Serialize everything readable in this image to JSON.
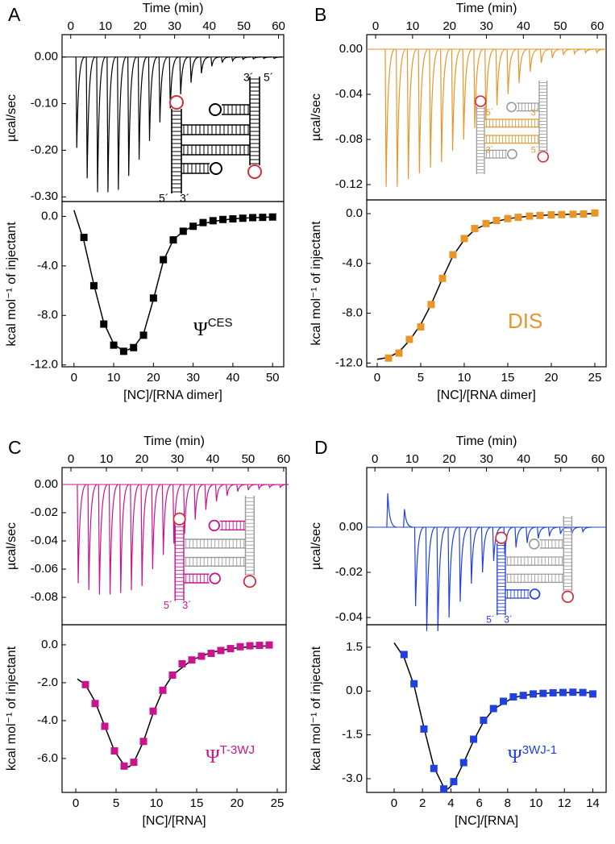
{
  "chart_data": [
    {
      "type": "trace",
      "panel_label": "A",
      "xlabel": "Time (min)",
      "ylabel": "µcal/sec",
      "color": "#000000",
      "xlim": [
        -2.5,
        61.5
      ],
      "xticks": [
        0,
        10,
        20,
        30,
        40,
        50,
        60
      ],
      "ylim": [
        -0.31,
        0.048
      ],
      "yticks": [
        {
          "value": 0,
          "label": "0.00"
        },
        {
          "value": -0.1,
          "label": "-0.10"
        },
        {
          "value": -0.2,
          "label": "-0.20"
        },
        {
          "value": -0.3,
          "label": "-0.30"
        }
      ],
      "x": [
        1.5,
        4.5,
        7.5,
        10.5,
        13.5,
        16.5,
        19.5,
        22.5,
        25.5,
        28.5,
        31.5,
        34.5,
        37.5,
        40.5,
        43.5,
        46.5,
        49.5,
        52.5,
        55.5,
        58.5
      ],
      "values": [
        -0.195,
        -0.26,
        -0.29,
        -0.29,
        -0.285,
        -0.255,
        -0.22,
        -0.18,
        -0.14,
        -0.11,
        -0.08,
        -0.055,
        -0.035,
        -0.02,
        -0.012,
        -0.008,
        -0.005,
        -0.004,
        -0.003,
        -0.003
      ],
      "diagram_labels": [
        "3´",
        "5´",
        "5´",
        "3´"
      ]
    },
    {
      "type": "scatter",
      "xlabel": "[NC]/[RNA dimer]",
      "ylabel": "kcal mol⁻¹ of injectant",
      "color": "#000000",
      "fit_color": "#000000",
      "xlim": [
        -3,
        52.8
      ],
      "xticks": [
        0,
        10,
        20,
        30,
        40,
        50
      ],
      "ylim": [
        -12.15,
        1.2
      ],
      "yticks": [
        {
          "value": 0,
          "label": "0.0"
        },
        {
          "value": -4,
          "label": "-4.0"
        },
        {
          "value": -8,
          "label": "-8.0"
        },
        {
          "value": -12,
          "label": "-12.0"
        }
      ],
      "x": [
        2.5,
        5,
        7.5,
        10,
        12.5,
        15,
        17.5,
        20,
        22.5,
        25,
        27.5,
        30,
        32.5,
        35,
        37.5,
        40,
        42.5,
        45,
        47.5,
        50
      ],
      "values": [
        -1.7,
        -5.6,
        -8.7,
        -10.4,
        -10.9,
        -10.6,
        -9.6,
        -6.6,
        -3.5,
        -1.9,
        -1.2,
        -0.8,
        -0.5,
        -0.35,
        -0.25,
        -0.2,
        -0.15,
        -0.1,
        -0.08,
        -0.05
      ],
      "fit_x": [
        0,
        2.5,
        5,
        7.5,
        10,
        12.5,
        15,
        17.5,
        20,
        22.5,
        25,
        27.5,
        30,
        35,
        40,
        45,
        50
      ],
      "fit_values": [
        0.5,
        -2,
        -5.5,
        -8.6,
        -10.3,
        -10.9,
        -10.6,
        -9.5,
        -6.7,
        -3.6,
        -1.9,
        -1.2,
        -0.8,
        -0.4,
        -0.2,
        -0.1,
        -0.05
      ],
      "annotation": {
        "text": "Ψ",
        "superscript": "CES",
        "color": "#000000"
      }
    },
    {
      "type": "trace",
      "panel_label": "B",
      "xlabel": "Time (min)",
      "ylabel": "µcal/sec",
      "color": "#e8962a",
      "xlim": [
        -2.4,
        62.4
      ],
      "xticks": [
        0,
        10,
        20,
        30,
        40,
        50,
        60
      ],
      "ylim": [
        -0.1336,
        0.0129
      ],
      "yticks": [
        {
          "value": 0,
          "label": "0.00"
        },
        {
          "value": -0.04,
          "label": "-0.04"
        },
        {
          "value": -0.08,
          "label": "-0.08"
        },
        {
          "value": -0.12,
          "label": "-0.12"
        }
      ],
      "x": [
        2.6,
        5.6,
        8.6,
        11.6,
        14.6,
        17.6,
        20.6,
        23.6,
        26.6,
        29.6,
        32.6,
        35.6,
        38.6,
        41.6,
        44.6,
        47.6,
        50.6,
        53.6,
        56.6,
        59.6
      ],
      "values": [
        -0.122,
        -0.122,
        -0.115,
        -0.11,
        -0.105,
        -0.1,
        -0.09,
        -0.08,
        -0.07,
        -0.063,
        -0.05,
        -0.04,
        -0.03,
        -0.02,
        -0.012,
        -0.008,
        -0.005,
        -0.004,
        -0.003,
        -0.003
      ],
      "diagram_labels": [
        "5´",
        "3´",
        "3´",
        "5´"
      ]
    },
    {
      "type": "scatter",
      "xlabel": "[NC]/[RNA dimer]",
      "ylabel": "kcal mol⁻¹ of injectant",
      "color": "#e8962a",
      "fit_color": "#000000",
      "xlim": [
        -1.2,
        26.3
      ],
      "xticks": [
        0,
        5,
        10,
        15,
        20,
        25
      ],
      "ylim": [
        -12.3,
        1.1
      ],
      "yticks": [
        {
          "value": 0,
          "label": "0.0"
        },
        {
          "value": -4,
          "label": "-4.0"
        },
        {
          "value": -8,
          "label": "-8.0"
        },
        {
          "value": -12,
          "label": "-12.0"
        }
      ],
      "x": [
        1.3,
        2.5,
        3.7,
        5,
        6.2,
        7.5,
        8.7,
        10,
        11.2,
        12.5,
        13.7,
        15,
        16.2,
        17.5,
        18.7,
        20,
        21.2,
        22.5,
        23.7,
        25
      ],
      "values": [
        -11.6,
        -11.2,
        -10.1,
        -9.1,
        -7.3,
        -5.2,
        -3.3,
        -2.0,
        -1.2,
        -0.8,
        -0.55,
        -0.4,
        -0.3,
        -0.2,
        -0.15,
        -0.1,
        -0.08,
        -0.05,
        -0.03,
        0.05
      ],
      "fit_x": [
        0,
        1.3,
        2.5,
        3.7,
        5,
        6.2,
        7.5,
        8.7,
        10,
        11.2,
        12.5,
        15,
        17.5,
        20,
        22.5,
        25
      ],
      "fit_values": [
        -11.7,
        -11.55,
        -11.1,
        -10.2,
        -8.9,
        -7.3,
        -5.2,
        -3.4,
        -2.1,
        -1.3,
        -0.85,
        -0.4,
        -0.2,
        -0.1,
        -0.05,
        0
      ],
      "annotation": {
        "text": "DIS",
        "color": "#e8962a"
      }
    },
    {
      "type": "trace",
      "panel_label": "C",
      "xlabel": "Time (min)",
      "ylabel": "µcal/sec",
      "color": "#c8158f",
      "xlim": [
        -2.5,
        60.7
      ],
      "xticks": [
        0,
        10,
        20,
        30,
        40,
        50,
        60
      ],
      "ylim": [
        -0.0994,
        0.012
      ],
      "yticks": [
        {
          "value": 0,
          "label": "0.00"
        },
        {
          "value": -0.02,
          "label": "-0.02"
        },
        {
          "value": -0.04,
          "label": "-0.04"
        },
        {
          "value": -0.06,
          "label": "-0.06"
        },
        {
          "value": -0.08,
          "label": "-0.08"
        }
      ],
      "x": [
        1.8,
        4.8,
        7.8,
        10.8,
        13.8,
        16.8,
        19.8,
        22.8,
        25.8,
        28.8,
        31.8,
        34.8,
        37.8,
        40.8,
        43.8,
        46.8,
        49.8,
        52.8,
        55.8,
        58.8
      ],
      "values": [
        -0.07,
        -0.075,
        -0.078,
        -0.078,
        -0.077,
        -0.075,
        -0.072,
        -0.06,
        -0.05,
        -0.042,
        -0.035,
        -0.025,
        -0.018,
        -0.012,
        -0.008,
        -0.005,
        -0.004,
        -0.003,
        -0.002,
        -0.002
      ],
      "diagram_labels": [
        "5´",
        "3´"
      ]
    },
    {
      "type": "scatter",
      "xlabel": "[NC]/[RNA]",
      "ylabel": "kcal mol⁻¹ of injectant",
      "color": "#c8158f",
      "fit_color": "#000000",
      "xlim": [
        -1.7,
        26.1
      ],
      "xticks": [
        0,
        5,
        10,
        15,
        20,
        25
      ],
      "ylim": [
        -7.79,
        1.06
      ],
      "yticks": [
        {
          "value": 0,
          "label": "0.0"
        },
        {
          "value": -2,
          "label": "-2.0"
        },
        {
          "value": -4,
          "label": "-4.0"
        },
        {
          "value": -6,
          "label": "-6.0"
        }
      ],
      "x": [
        1.2,
        2.4,
        3.6,
        4.8,
        6,
        7.2,
        8.4,
        9.6,
        10.8,
        12,
        13.2,
        14.4,
        15.6,
        16.8,
        18,
        19.2,
        20.4,
        21.6,
        22.8,
        24
      ],
      "values": [
        -2.1,
        -3.1,
        -4.3,
        -5.6,
        -6.4,
        -6.2,
        -5.1,
        -3.5,
        -2.4,
        -1.6,
        -1.0,
        -0.8,
        -0.6,
        -0.45,
        -0.3,
        -0.2,
        -0.1,
        -0.05,
        -0.03,
        -0.01
      ],
      "fit_x": [
        0.2,
        1.2,
        2.4,
        3.6,
        4.8,
        6,
        6.6,
        7.2,
        8.4,
        9.6,
        10.8,
        12,
        14.4,
        16.8,
        19.2,
        21.6,
        24
      ],
      "fit_values": [
        -1.8,
        -2.1,
        -3.0,
        -4.3,
        -5.6,
        -6.35,
        -6.45,
        -6.2,
        -5.1,
        -3.6,
        -2.4,
        -1.6,
        -0.8,
        -0.4,
        -0.2,
        -0.1,
        -0.05
      ],
      "annotation": {
        "text": "Ψ",
        "superscript": "T-3WJ",
        "color": "#c8158f"
      }
    },
    {
      "type": "trace",
      "panel_label": "D",
      "xlabel": "Time (min)",
      "ylabel": "µcal/sec",
      "color": "#2040e0",
      "xlim": [
        -2.2,
        62.2
      ],
      "xticks": [
        0,
        10,
        20,
        30,
        40,
        50,
        60
      ],
      "ylim": [
        -0.0432,
        0.0264
      ],
      "yticks": [
        {
          "value": 0,
          "label": "0.00"
        },
        {
          "value": -0.02,
          "label": "-0.02"
        },
        {
          "value": -0.04,
          "label": "-0.04"
        }
      ],
      "x": [
        3.2,
        7.7,
        10.7,
        13.7,
        16.7,
        19.7,
        22.7,
        25.7,
        28.7,
        31.7,
        34.7,
        37.7,
        40.7,
        43.7,
        46.7,
        49.7,
        52.7,
        55.7
      ],
      "values": [
        0.015,
        0.008,
        -0.035,
        -0.046,
        -0.046,
        -0.04,
        -0.033,
        -0.025,
        -0.02,
        -0.015,
        -0.012,
        -0.009,
        -0.007,
        -0.005,
        -0.004,
        -0.003,
        -0.003,
        -0.002
      ],
      "diagram_labels": [
        "5´",
        "3´"
      ]
    },
    {
      "type": "scatter",
      "xlabel": "[NC]/[RNA]",
      "ylabel": "kcal mol⁻¹ of injectant",
      "color": "#2040e0",
      "fit_color": "#000000",
      "xlim": [
        -1.93,
        14.94
      ],
      "xticks": [
        0,
        2,
        4,
        6,
        8,
        10,
        12,
        14
      ],
      "ylim": [
        -3.47,
        2.27
      ],
      "yticks": [
        1.5,
        {
          "value": 0,
          "label": "0.0"
        },
        -1.5,
        {
          "value": -3,
          "label": "-3.0"
        }
      ],
      "x": [
        0.7,
        1.4,
        2.1,
        2.8,
        3.5,
        4.2,
        4.9,
        5.6,
        6.3,
        7.0,
        7.7,
        8.4,
        9.1,
        9.8,
        10.5,
        11.2,
        11.9,
        12.6,
        13.3,
        14.0
      ],
      "values": [
        1.25,
        0.25,
        -1.3,
        -2.65,
        -3.35,
        -3.1,
        -2.45,
        -1.65,
        -1.0,
        -0.6,
        -0.35,
        -0.2,
        -0.15,
        -0.1,
        -0.08,
        -0.06,
        -0.05,
        -0.04,
        -0.05,
        -0.1
      ],
      "fit_x": [
        0,
        0.7,
        1.4,
        2.1,
        2.8,
        3.5,
        3.8,
        4.2,
        4.9,
        5.6,
        6.3,
        7.0,
        8.4,
        9.8,
        11.2,
        12.6,
        14.0
      ],
      "fit_values": [
        1.65,
        1.15,
        0.2,
        -1.25,
        -2.6,
        -3.3,
        -3.35,
        -3.15,
        -2.45,
        -1.7,
        -1.05,
        -0.62,
        -0.22,
        -0.1,
        -0.06,
        -0.05,
        -0.06
      ],
      "annotation": {
        "text": "Ψ",
        "superscript": "3WJ-1",
        "color": "#2040e0"
      }
    }
  ]
}
